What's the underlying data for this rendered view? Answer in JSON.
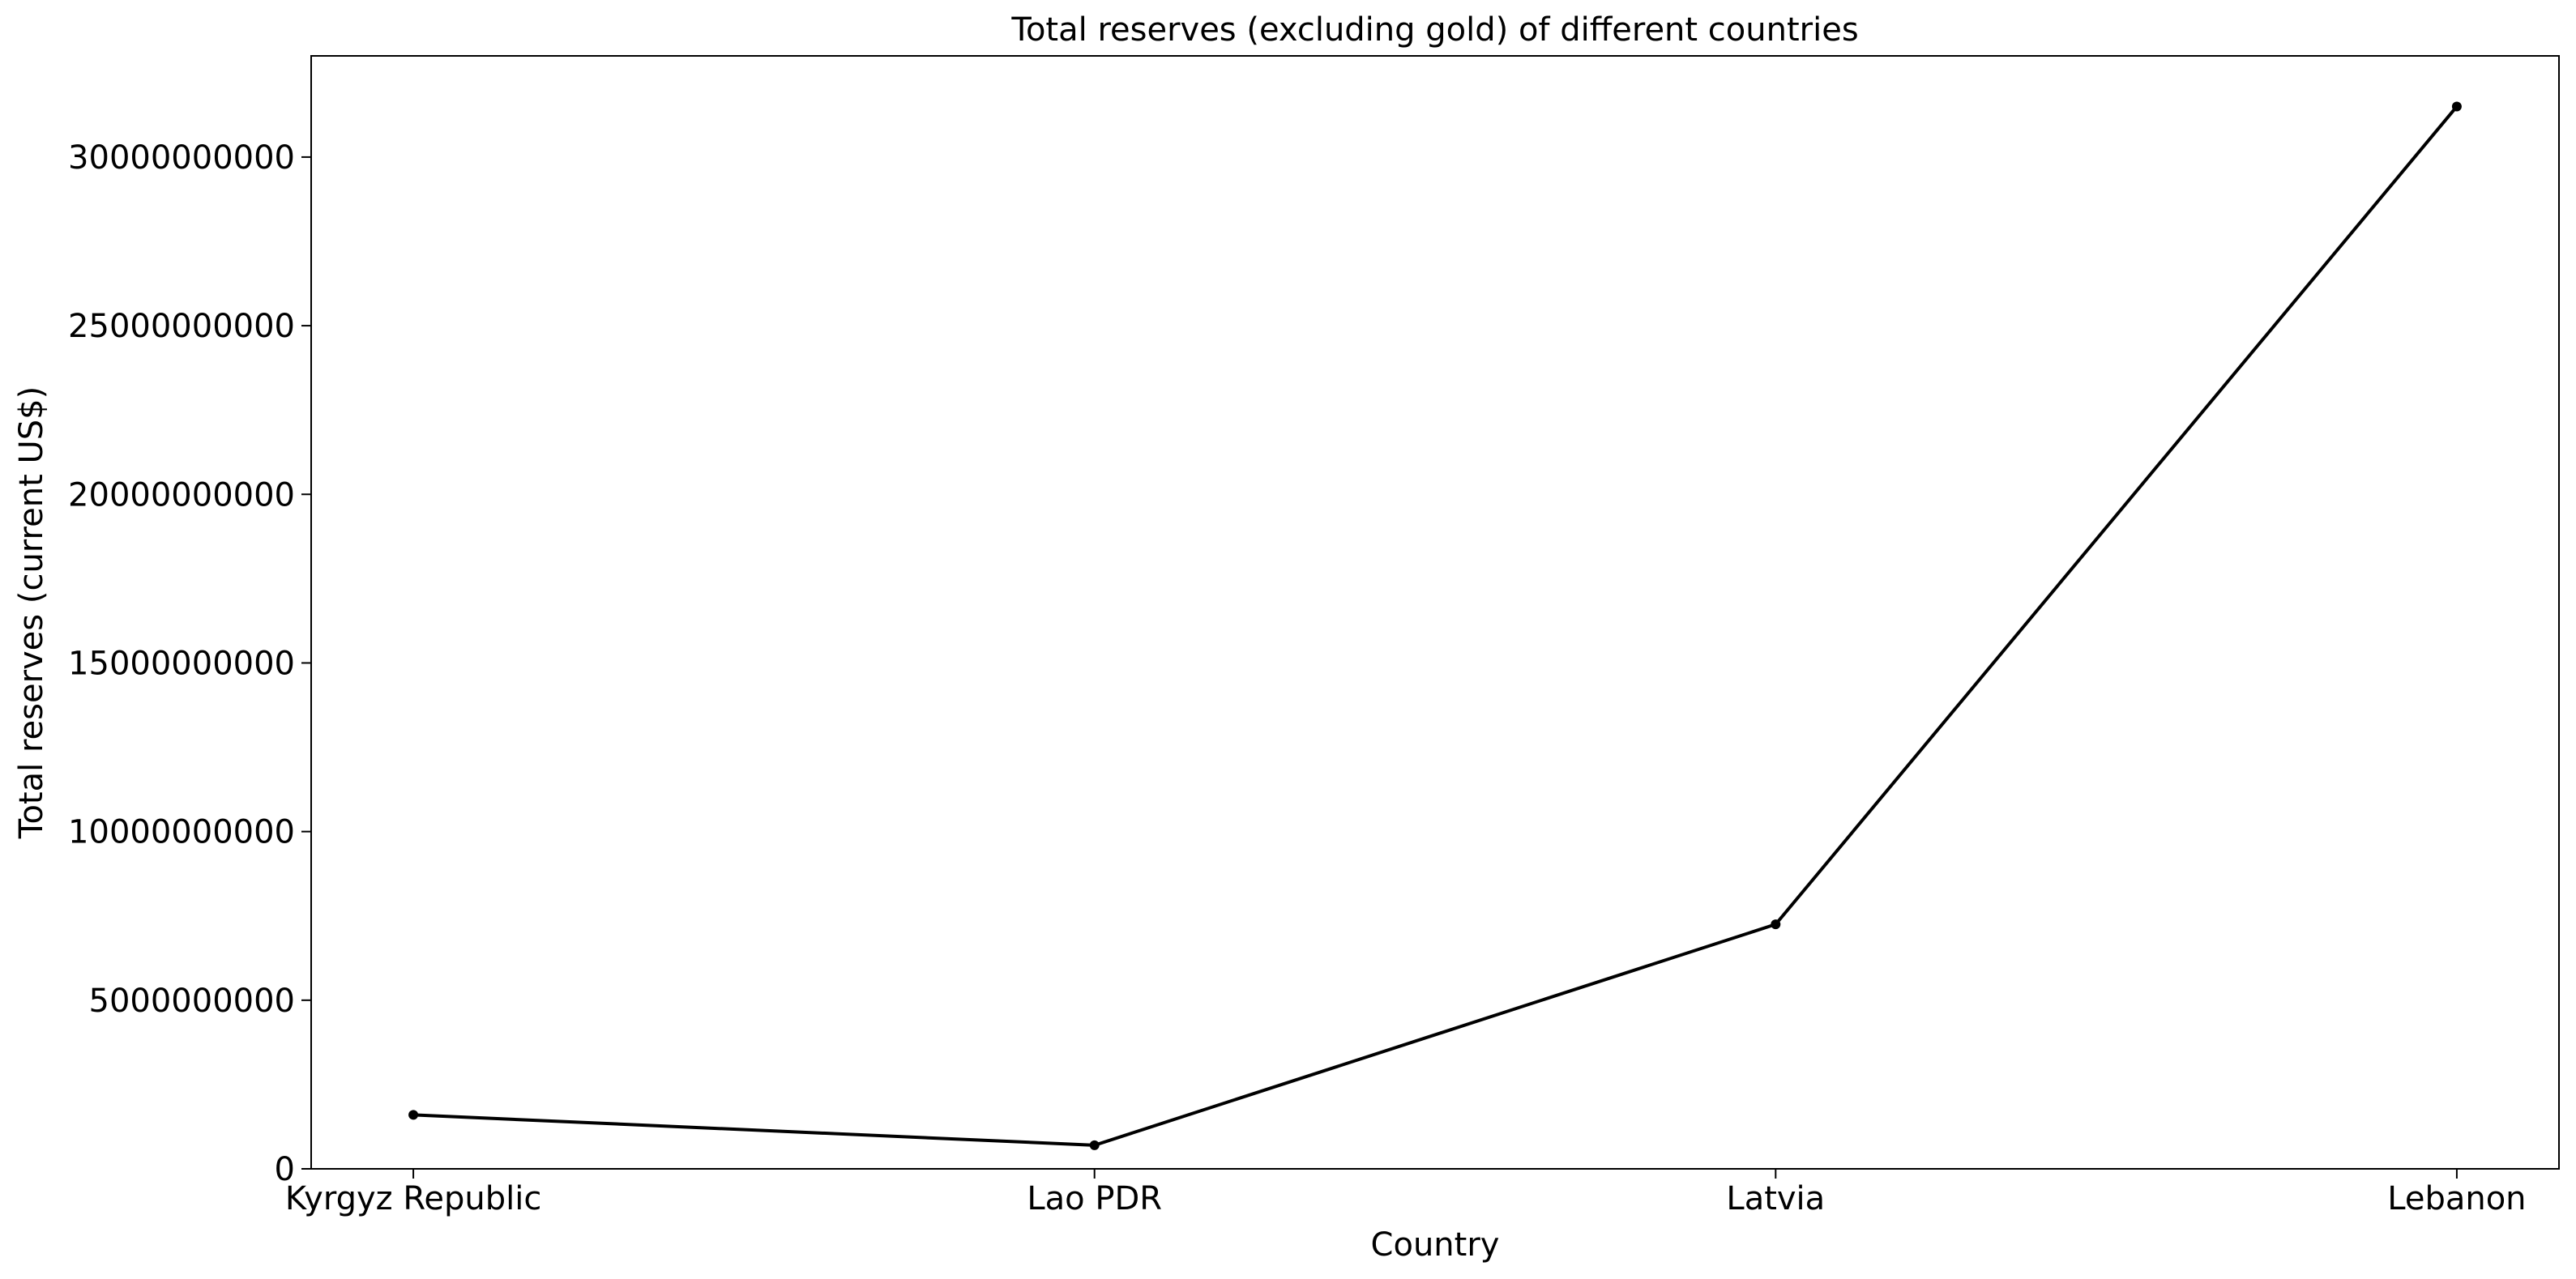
{
  "chart_data": {
    "type": "line",
    "title": "Total reserves (excluding gold) of different countries",
    "xlabel": "Country",
    "ylabel": "Total reserves (current US$)",
    "categories": [
      "Kyrgyz Republic",
      "Lao PDR",
      "Latvia",
      "Lebanon"
    ],
    "series": [
      {
        "values": [
          1600000000,
          700000000,
          7250000000,
          31500000000
        ],
        "color": "#000000"
      }
    ],
    "ylim": [
      0,
      33000000000
    ],
    "yticks": [
      0,
      5000000000,
      10000000000,
      15000000000,
      20000000000,
      25000000000,
      30000000000
    ],
    "ytick_labels": [
      "0",
      "5000000000",
      "10000000000",
      "15000000000",
      "20000000000",
      "25000000000",
      "30000000000"
    ],
    "grid": false,
    "marker": "point"
  }
}
